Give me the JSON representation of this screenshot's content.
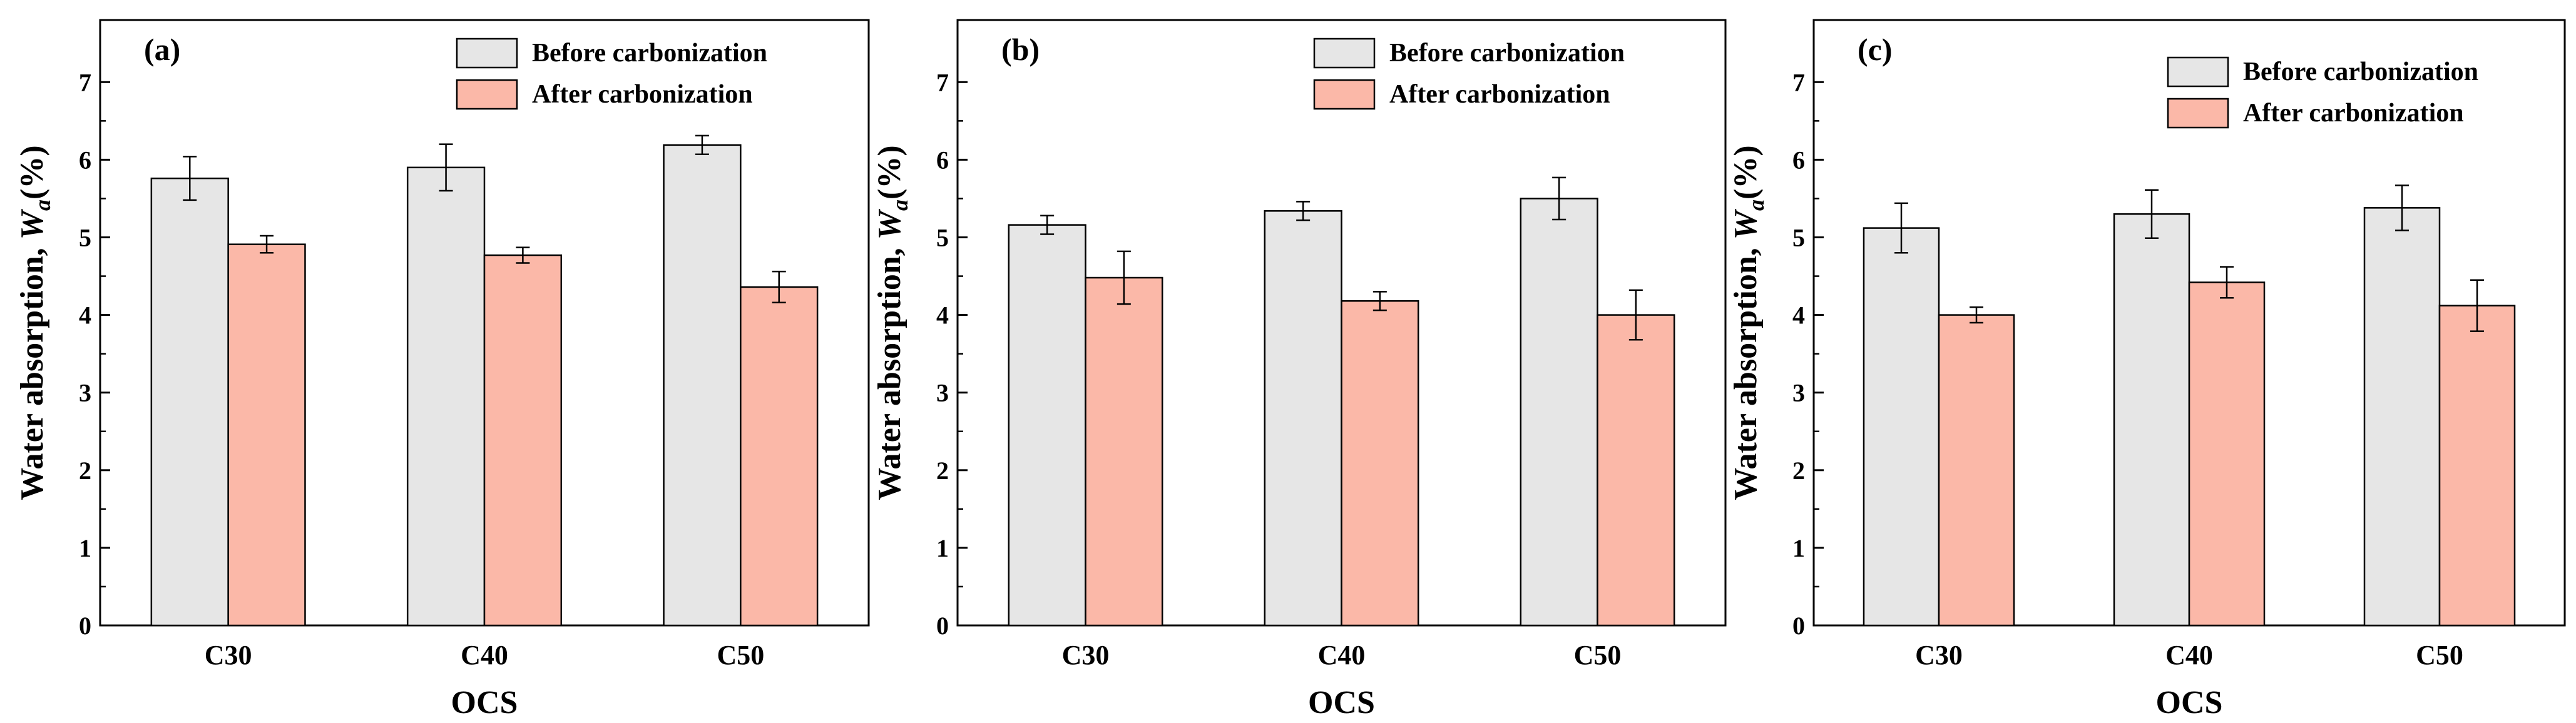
{
  "chart_data": [
    {
      "type": "bar",
      "panel": "(a)",
      "categories": [
        "C30",
        "C40",
        "C50"
      ],
      "series": [
        {
          "name": "Before carbonization",
          "color": "#e6e6e6",
          "values": [
            5.76,
            5.9,
            6.19
          ],
          "errors": [
            0.28,
            0.3,
            0.12
          ]
        },
        {
          "name": "After carbonization",
          "color": "#fbb8a8",
          "values": [
            4.91,
            4.77,
            4.36
          ],
          "errors": [
            0.11,
            0.1,
            0.2
          ]
        }
      ],
      "xlabel": "OCS",
      "ylabel_main": "Water absorption, ",
      "ylabel_var": "W",
      "ylabel_sub": "a",
      "ylabel_unit": "(%)",
      "ylim": [
        0,
        7.8
      ],
      "yticks": [
        0,
        1,
        2,
        3,
        4,
        5,
        6,
        7
      ],
      "legend_position": "top-right"
    },
    {
      "type": "bar",
      "panel": "(b)",
      "categories": [
        "C30",
        "C40",
        "C50"
      ],
      "series": [
        {
          "name": "Before carbonization",
          "color": "#e6e6e6",
          "values": [
            5.16,
            5.34,
            5.5
          ],
          "errors": [
            0.12,
            0.12,
            0.27
          ]
        },
        {
          "name": "After carbonization",
          "color": "#fbb8a8",
          "values": [
            4.48,
            4.18,
            4.0
          ],
          "errors": [
            0.34,
            0.12,
            0.32
          ]
        }
      ],
      "xlabel": "OCS",
      "ylabel_main": "Water absorption, ",
      "ylabel_var": "W",
      "ylabel_sub": "a",
      "ylabel_unit": "(%)",
      "ylim": [
        0,
        7.8
      ],
      "yticks": [
        0,
        1,
        2,
        3,
        4,
        5,
        6,
        7
      ],
      "legend_position": "top-right"
    },
    {
      "type": "bar",
      "panel": "(c)",
      "categories": [
        "C30",
        "C40",
        "C50"
      ],
      "series": [
        {
          "name": "Before carbonization",
          "color": "#e6e6e6",
          "values": [
            5.12,
            5.3,
            5.38
          ],
          "errors": [
            0.32,
            0.31,
            0.29
          ]
        },
        {
          "name": "After carbonization",
          "color": "#fbb8a8",
          "values": [
            4.0,
            4.42,
            4.12
          ],
          "errors": [
            0.1,
            0.2,
            0.33
          ]
        }
      ],
      "xlabel": "OCS",
      "ylabel_main": "Water absorption, ",
      "ylabel_var": "W",
      "ylabel_sub": "a",
      "ylabel_unit": "(%)",
      "ylim": [
        0,
        7.8
      ],
      "yticks": [
        0,
        1,
        2,
        3,
        4,
        5,
        6,
        7
      ],
      "legend_position": "top-right"
    }
  ]
}
